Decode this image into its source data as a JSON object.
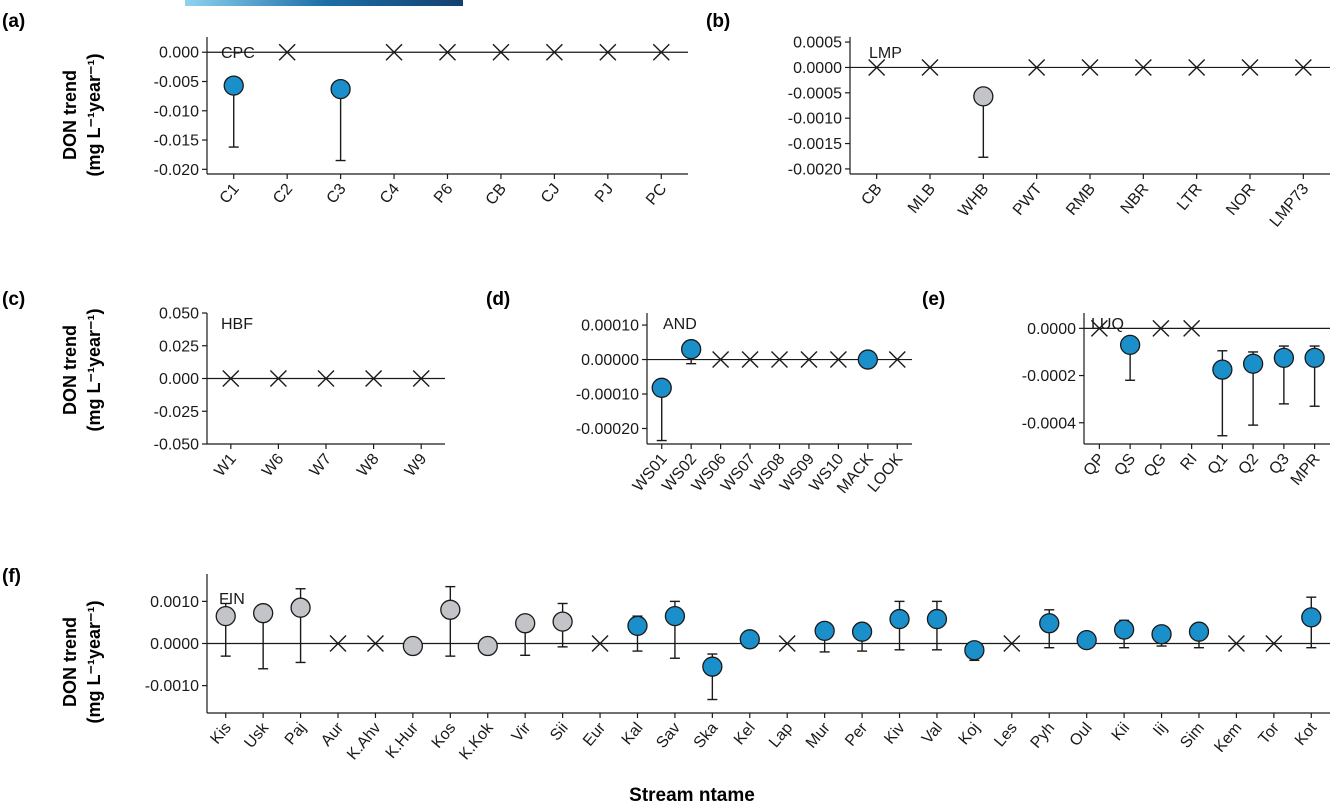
{
  "figure": {
    "ylabel_line1": "DON trend",
    "ylabel_line2": "(mg L⁻¹year⁻¹)",
    "xlabel": "Stream ntame"
  },
  "colors": {
    "significant": "#1a8fc9",
    "nonsignificant": "#c2c4c8",
    "zero_marker": "#1a1a1a"
  },
  "chart_data": [
    {
      "type": "scatter",
      "panel": "(a)",
      "site": "CPC",
      "categories": [
        "C1",
        "C2",
        "C3",
        "C4",
        "P6",
        "CB",
        "CJ",
        "PJ",
        "PC"
      ],
      "yticks": [
        0.0,
        -0.005,
        -0.01,
        -0.015,
        -0.02
      ],
      "ytick_labels": [
        "0.000",
        "-0.005",
        "-0.010",
        "-0.015",
        "-0.020"
      ],
      "ylim": [
        -0.0208,
        0.0026
      ],
      "points": [
        {
          "x": "C1",
          "y": -0.0057,
          "low": -0.0162,
          "high": null,
          "kind": "sig"
        },
        {
          "x": "C2",
          "y": 0,
          "low": null,
          "high": null,
          "kind": "zero"
        },
        {
          "x": "C3",
          "y": -0.0063,
          "low": -0.0185,
          "high": null,
          "kind": "sig"
        },
        {
          "x": "C4",
          "y": 0,
          "low": null,
          "high": null,
          "kind": "zero"
        },
        {
          "x": "P6",
          "y": 0,
          "low": null,
          "high": null,
          "kind": "zero"
        },
        {
          "x": "CB",
          "y": 0,
          "low": null,
          "high": null,
          "kind": "zero"
        },
        {
          "x": "CJ",
          "y": 0,
          "low": null,
          "high": null,
          "kind": "zero"
        },
        {
          "x": "PJ",
          "y": 0,
          "low": null,
          "high": null,
          "kind": "zero"
        },
        {
          "x": "PC",
          "y": 0,
          "low": null,
          "high": null,
          "kind": "zero"
        }
      ]
    },
    {
      "type": "scatter",
      "panel": "(b)",
      "site": "LMP",
      "categories": [
        "CB",
        "MLB",
        "WHB",
        "PWT",
        "RMB",
        "NBR",
        "LTR",
        "NOR",
        "LMP73"
      ],
      "yticks": [
        0.0005,
        0.0,
        -0.0005,
        -0.001,
        -0.0015,
        -0.002
      ],
      "ytick_labels": [
        "0.0005",
        "0.0000",
        "-0.0005",
        "-0.0010",
        "-0.0015",
        "-0.0020"
      ],
      "ylim": [
        -0.0021,
        0.0006
      ],
      "points": [
        {
          "x": "CB",
          "y": 0,
          "low": null,
          "high": null,
          "kind": "zero"
        },
        {
          "x": "MLB",
          "y": 0,
          "low": null,
          "high": null,
          "kind": "zero"
        },
        {
          "x": "WHB",
          "y": -0.00057,
          "low": -0.00177,
          "high": null,
          "kind": "ns"
        },
        {
          "x": "PWT",
          "y": 0,
          "low": null,
          "high": null,
          "kind": "zero"
        },
        {
          "x": "RMB",
          "y": 0,
          "low": null,
          "high": null,
          "kind": "zero"
        },
        {
          "x": "NBR",
          "y": 0,
          "low": null,
          "high": null,
          "kind": "zero"
        },
        {
          "x": "LTR",
          "y": 0,
          "low": null,
          "high": null,
          "kind": "zero"
        },
        {
          "x": "NOR",
          "y": 0,
          "low": null,
          "high": null,
          "kind": "zero"
        },
        {
          "x": "LMP73",
          "y": 0,
          "low": null,
          "high": null,
          "kind": "zero"
        }
      ]
    },
    {
      "type": "scatter",
      "panel": "(c)",
      "site": "HBF",
      "categories": [
        "W1",
        "W6",
        "W7",
        "W8",
        "W9"
      ],
      "yticks": [
        0.05,
        0.025,
        0.0,
        -0.025,
        -0.05
      ],
      "ytick_labels": [
        "0.050",
        "0.025",
        "0.000",
        "-0.025",
        "-0.050"
      ],
      "ylim": [
        -0.05,
        0.05
      ],
      "points": [
        {
          "x": "W1",
          "y": 0,
          "low": null,
          "high": null,
          "kind": "zero"
        },
        {
          "x": "W6",
          "y": 0,
          "low": null,
          "high": null,
          "kind": "zero"
        },
        {
          "x": "W7",
          "y": 0,
          "low": null,
          "high": null,
          "kind": "zero"
        },
        {
          "x": "W8",
          "y": 0,
          "low": null,
          "high": null,
          "kind": "zero"
        },
        {
          "x": "W9",
          "y": 0,
          "low": null,
          "high": null,
          "kind": "zero"
        }
      ]
    },
    {
      "type": "scatter",
      "panel": "(d)",
      "site": "AND",
      "categories": [
        "WS01",
        "WS02",
        "WS06",
        "WS07",
        "WS08",
        "WS09",
        "WS10",
        "MACK",
        "LOOK"
      ],
      "yticks": [
        0.0001,
        0.0,
        -0.0001,
        -0.0002
      ],
      "ytick_labels": [
        "0.00010",
        "0.00000",
        "-0.00010",
        "-0.00020"
      ],
      "ylim": [
        -0.000245,
        0.000135
      ],
      "points": [
        {
          "x": "WS01",
          "y": -8.2e-05,
          "low": -0.000235,
          "high": null,
          "kind": "sig"
        },
        {
          "x": "WS02",
          "y": 3e-05,
          "low": -1.2e-05,
          "high": null,
          "kind": "sig"
        },
        {
          "x": "WS06",
          "y": 0,
          "low": null,
          "high": null,
          "kind": "zero"
        },
        {
          "x": "WS07",
          "y": 0,
          "low": null,
          "high": null,
          "kind": "zero"
        },
        {
          "x": "WS08",
          "y": 0,
          "low": null,
          "high": null,
          "kind": "zero"
        },
        {
          "x": "WS09",
          "y": 0,
          "low": null,
          "high": null,
          "kind": "zero"
        },
        {
          "x": "WS10",
          "y": 0,
          "low": null,
          "high": null,
          "kind": "zero"
        },
        {
          "x": "MACK",
          "y": 0,
          "low": null,
          "high": null,
          "kind": "sig"
        },
        {
          "x": "LOOK",
          "y": 0,
          "low": null,
          "high": null,
          "kind": "zero"
        }
      ]
    },
    {
      "type": "scatter",
      "panel": "(e)",
      "site": "LUQ",
      "categories": [
        "QP",
        "QS",
        "QG",
        "RI",
        "Q1",
        "Q2",
        "Q3",
        "MPR"
      ],
      "yticks": [
        0.0,
        -0.0002,
        -0.0004
      ],
      "ytick_labels": [
        "0.0000",
        "-0.0002",
        "-0.0004"
      ],
      "ylim": [
        -0.00049,
        6.5e-05
      ],
      "points": [
        {
          "x": "QP",
          "y": 0,
          "low": null,
          "high": null,
          "kind": "zero"
        },
        {
          "x": "QS",
          "y": -7e-05,
          "low": -0.00022,
          "high": null,
          "kind": "sig"
        },
        {
          "x": "QG",
          "y": 0,
          "low": null,
          "high": null,
          "kind": "zero"
        },
        {
          "x": "RI",
          "y": 0,
          "low": null,
          "high": null,
          "kind": "zero"
        },
        {
          "x": "Q1",
          "y": -0.000175,
          "low": -0.000455,
          "high": -9.5e-05,
          "kind": "sig"
        },
        {
          "x": "Q2",
          "y": -0.00015,
          "low": -0.00041,
          "high": -0.0001,
          "kind": "sig"
        },
        {
          "x": "Q3",
          "y": -0.000125,
          "low": -0.00032,
          "high": -7.5e-05,
          "kind": "sig"
        },
        {
          "x": "MPR",
          "y": -0.000125,
          "low": -0.00033,
          "high": -7.5e-05,
          "kind": "sig"
        }
      ]
    },
    {
      "type": "scatter",
      "panel": "(f)",
      "site": "FIN",
      "categories": [
        "Kis",
        "Usk",
        "Paj",
        "Aur",
        "K.Ahv",
        "K.Hur",
        "Kos",
        "K.Kok",
        "Vir",
        "Sii",
        "Eur",
        "Kal",
        "Sav",
        "Ska",
        "Kel",
        "Lap",
        "Mur",
        "Per",
        "Kiv",
        "Val",
        "Koj",
        "Les",
        "Pyh",
        "Oul",
        "Kii",
        "Iij",
        "Sim",
        "Kem",
        "Tor",
        "Kot"
      ],
      "yticks": [
        0.001,
        0.0,
        -0.001
      ],
      "ytick_labels": [
        "0.0010",
        "0.0000",
        "-0.0010"
      ],
      "ylim": [
        -0.00165,
        0.00165
      ],
      "points": [
        {
          "x": "Kis",
          "y": 0.00065,
          "low": -0.0003,
          "high": 0.00095,
          "kind": "ns"
        },
        {
          "x": "Usk",
          "y": 0.00072,
          "low": -0.0006,
          "high": 0.00075,
          "kind": "ns"
        },
        {
          "x": "Paj",
          "y": 0.00085,
          "low": -0.00045,
          "high": 0.0013,
          "kind": "ns"
        },
        {
          "x": "Aur",
          "y": 0,
          "low": null,
          "high": null,
          "kind": "zero"
        },
        {
          "x": "K.Ahv",
          "y": 0,
          "low": null,
          "high": null,
          "kind": "zero"
        },
        {
          "x": "K.Hur",
          "y": -6e-05,
          "low": null,
          "high": null,
          "kind": "ns"
        },
        {
          "x": "Kos",
          "y": 0.0008,
          "low": -0.0003,
          "high": 0.00135,
          "kind": "ns"
        },
        {
          "x": "K.Kok",
          "y": -6e-05,
          "low": null,
          "high": null,
          "kind": "ns"
        },
        {
          "x": "Vir",
          "y": 0.00048,
          "low": -0.00028,
          "high": 0.00065,
          "kind": "ns"
        },
        {
          "x": "Sii",
          "y": 0.00052,
          "low": -8e-05,
          "high": 0.00095,
          "kind": "ns"
        },
        {
          "x": "Eur",
          "y": 0,
          "low": null,
          "high": null,
          "kind": "zero"
        },
        {
          "x": "Kal",
          "y": 0.00042,
          "low": -0.00018,
          "high": 0.00065,
          "kind": "sig"
        },
        {
          "x": "Sav",
          "y": 0.00065,
          "low": -0.00035,
          "high": 0.001,
          "kind": "sig"
        },
        {
          "x": "Ska",
          "y": -0.00055,
          "low": -0.00133,
          "high": -0.00025,
          "kind": "sig"
        },
        {
          "x": "Kel",
          "y": 0.0001,
          "low": null,
          "high": null,
          "kind": "sig"
        },
        {
          "x": "Lap",
          "y": 0,
          "low": null,
          "high": null,
          "kind": "zero"
        },
        {
          "x": "Mur",
          "y": 0.0003,
          "low": -0.0002,
          "high": null,
          "kind": "sig"
        },
        {
          "x": "Per",
          "y": 0.00028,
          "low": -0.00018,
          "high": null,
          "kind": "sig"
        },
        {
          "x": "Kiv",
          "y": 0.00058,
          "low": -0.00015,
          "high": 0.001,
          "kind": "sig"
        },
        {
          "x": "Val",
          "y": 0.00058,
          "low": -0.00015,
          "high": 0.001,
          "kind": "sig"
        },
        {
          "x": "Koj",
          "y": -0.00016,
          "low": -0.0004,
          "high": null,
          "kind": "sig"
        },
        {
          "x": "Les",
          "y": 0,
          "low": null,
          "high": null,
          "kind": "zero"
        },
        {
          "x": "Pyh",
          "y": 0.00048,
          "low": -0.0001,
          "high": 0.0008,
          "kind": "sig"
        },
        {
          "x": "Oul",
          "y": 8e-05,
          "low": null,
          "high": null,
          "kind": "sig"
        },
        {
          "x": "Kii",
          "y": 0.00033,
          "low": -0.0001,
          "high": 0.00055,
          "kind": "sig"
        },
        {
          "x": "Iij",
          "y": 0.00022,
          "low": -6e-05,
          "high": null,
          "kind": "sig"
        },
        {
          "x": "Sim",
          "y": 0.00028,
          "low": -0.0001,
          "high": null,
          "kind": "sig"
        },
        {
          "x": "Kem",
          "y": 0,
          "low": null,
          "high": null,
          "kind": "zero"
        },
        {
          "x": "Tor",
          "y": 0,
          "low": null,
          "high": null,
          "kind": "zero"
        },
        {
          "x": "Kot",
          "y": 0.00062,
          "low": -0.0001,
          "high": 0.0011,
          "kind": "sig"
        }
      ]
    }
  ]
}
